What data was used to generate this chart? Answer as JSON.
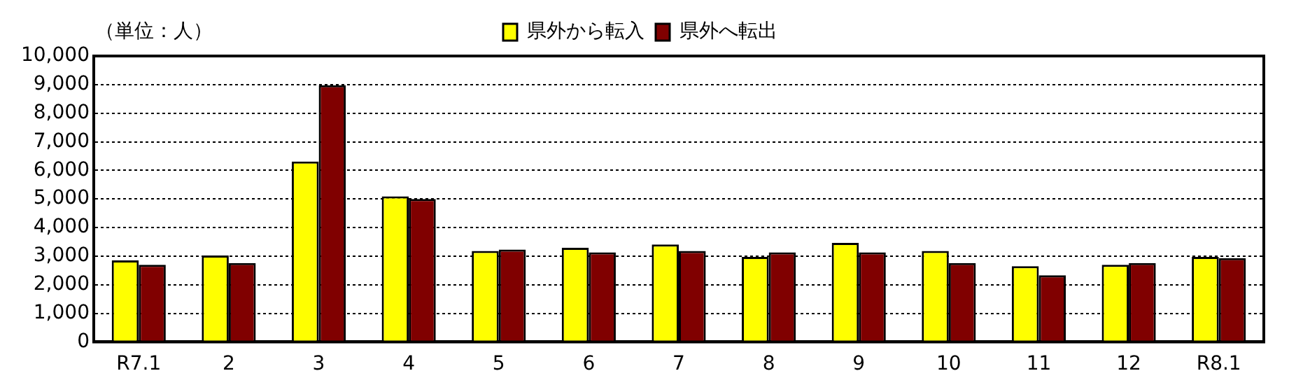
{
  "chart_data": {
    "type": "bar",
    "annotations": [
      "（単位：人）"
    ],
    "categories": [
      "R7.1",
      "2",
      "3",
      "4",
      "5",
      "6",
      "7",
      "8",
      "9",
      "10",
      "11",
      "12",
      "R8.1"
    ],
    "series": [
      {
        "name": "県外から転入",
        "color": "#ffff00",
        "values": [
          2850,
          3020,
          6310,
          5090,
          3180,
          3290,
          3410,
          2970,
          3460,
          3180,
          2650,
          2700,
          2970
        ]
      },
      {
        "name": "県外へ転出",
        "color": "#800000",
        "values": [
          2700,
          2760,
          8980,
          5000,
          3230,
          3130,
          3180,
          3130,
          3130,
          2760,
          2330,
          2760,
          2930
        ]
      }
    ],
    "ylim": [
      0,
      10000
    ],
    "yticks": [
      {
        "value": 0,
        "label": "0"
      },
      {
        "value": 1000,
        "label": "1,000"
      },
      {
        "value": 2000,
        "label": "2,000"
      },
      {
        "value": 3000,
        "label": "3,000"
      },
      {
        "value": 4000,
        "label": "4,000"
      },
      {
        "value": 5000,
        "label": "5,000"
      },
      {
        "value": 6000,
        "label": "6,000"
      },
      {
        "value": 7000,
        "label": "7,000"
      },
      {
        "value": 8000,
        "label": "8,000"
      },
      {
        "value": 9000,
        "label": "9,000"
      },
      {
        "value": 10000,
        "label": "10,000"
      }
    ],
    "grid": "y",
    "legend": "top"
  }
}
